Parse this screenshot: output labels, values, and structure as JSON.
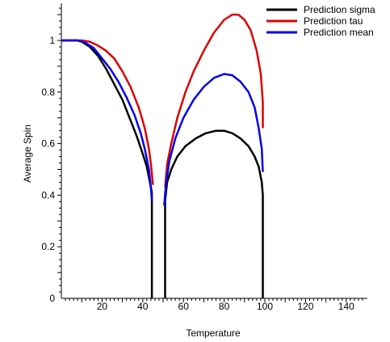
{
  "chart_data": {
    "type": "line",
    "xlabel": "Temperature",
    "ylabel": "Average Spin",
    "xlim": [
      0,
      150
    ],
    "ylim": [
      0,
      1.15
    ],
    "x_ticks": [
      "20",
      "40",
      "60",
      "80",
      "100",
      "120",
      "140"
    ],
    "y_ticks": [
      "0",
      "0.2",
      "0.4",
      "0.6",
      "0.8",
      "1"
    ],
    "legend_position": "top-right",
    "series": [
      {
        "name": "Prediction sigma",
        "color": "#000000",
        "segments": [
          [
            [
              0,
              1
            ],
            [
              4,
              1
            ],
            [
              8,
              1
            ],
            [
              10,
              0.995
            ],
            [
              14,
              0.975
            ],
            [
              18,
              0.94
            ],
            [
              22,
              0.89
            ],
            [
              26,
              0.83
            ],
            [
              30,
              0.77
            ],
            [
              34,
              0.69
            ],
            [
              37,
              0.63
            ],
            [
              40,
              0.56
            ],
            [
              42,
              0.51
            ],
            [
              43.5,
              0.45
            ],
            [
              44.5,
              0.41
            ]
          ],
          [
            [
              44.5,
              0
            ],
            [
              44.5,
              0.41
            ]
          ],
          [
            [
              51,
              0
            ],
            [
              51,
              0.38
            ],
            [
              52,
              0.45
            ],
            [
              54,
              0.5
            ],
            [
              57,
              0.55
            ],
            [
              61,
              0.59
            ],
            [
              66,
              0.62
            ],
            [
              71,
              0.64
            ],
            [
              76,
              0.65
            ],
            [
              80,
              0.65
            ],
            [
              84,
              0.64
            ],
            [
              88,
              0.62
            ],
            [
              92,
              0.59
            ],
            [
              95,
              0.55
            ],
            [
              97,
              0.51
            ],
            [
              98.5,
              0.45
            ],
            [
              99,
              0.4
            ],
            [
              99,
              0
            ]
          ]
        ]
      },
      {
        "name": "Prediction tau",
        "color": "#dd0000",
        "segments": [
          [
            [
              0,
              1
            ],
            [
              10,
              1
            ],
            [
              14,
              0.995
            ],
            [
              18,
              0.98
            ],
            [
              22,
              0.96
            ],
            [
              26,
              0.93
            ],
            [
              30,
              0.88
            ],
            [
              34,
              0.82
            ],
            [
              38,
              0.74
            ],
            [
              41,
              0.66
            ],
            [
              43,
              0.58
            ],
            [
              44,
              0.52
            ],
            [
              45,
              0.44
            ]
          ],
          [
            [
              51,
              0.43
            ],
            [
              52,
              0.52
            ],
            [
              54,
              0.6
            ],
            [
              57,
              0.7
            ],
            [
              61,
              0.8
            ],
            [
              65,
              0.88
            ],
            [
              70,
              0.96
            ],
            [
              75,
              1.03
            ],
            [
              80,
              1.08
            ],
            [
              84,
              1.1
            ],
            [
              87,
              1.1
            ],
            [
              90,
              1.08
            ],
            [
              93,
              1.04
            ],
            [
              96,
              0.96
            ],
            [
              98,
              0.87
            ],
            [
              99,
              0.76
            ],
            [
              99,
              0.66
            ]
          ]
        ]
      },
      {
        "name": "Prediction mean",
        "color": "#0000ee",
        "segments": [
          [
            [
              0,
              1
            ],
            [
              8,
              1
            ],
            [
              12,
              0.99
            ],
            [
              16,
              0.97
            ],
            [
              20,
              0.93
            ],
            [
              24,
              0.89
            ],
            [
              28,
              0.84
            ],
            [
              32,
              0.78
            ],
            [
              36,
              0.71
            ],
            [
              39,
              0.64
            ],
            [
              41,
              0.58
            ],
            [
              43,
              0.5
            ],
            [
              44,
              0.43
            ],
            [
              44.5,
              0.38
            ]
          ],
          [
            [
              50.5,
              0.36
            ],
            [
              51.5,
              0.45
            ],
            [
              53,
              0.53
            ],
            [
              56,
              0.62
            ],
            [
              60,
              0.7
            ],
            [
              65,
              0.77
            ],
            [
              70,
              0.82
            ],
            [
              75,
              0.855
            ],
            [
              80,
              0.87
            ],
            [
              84,
              0.865
            ],
            [
              88,
              0.84
            ],
            [
              92,
              0.8
            ],
            [
              95,
              0.74
            ],
            [
              97,
              0.66
            ],
            [
              98.5,
              0.58
            ],
            [
              99,
              0.49
            ]
          ]
        ]
      }
    ]
  }
}
